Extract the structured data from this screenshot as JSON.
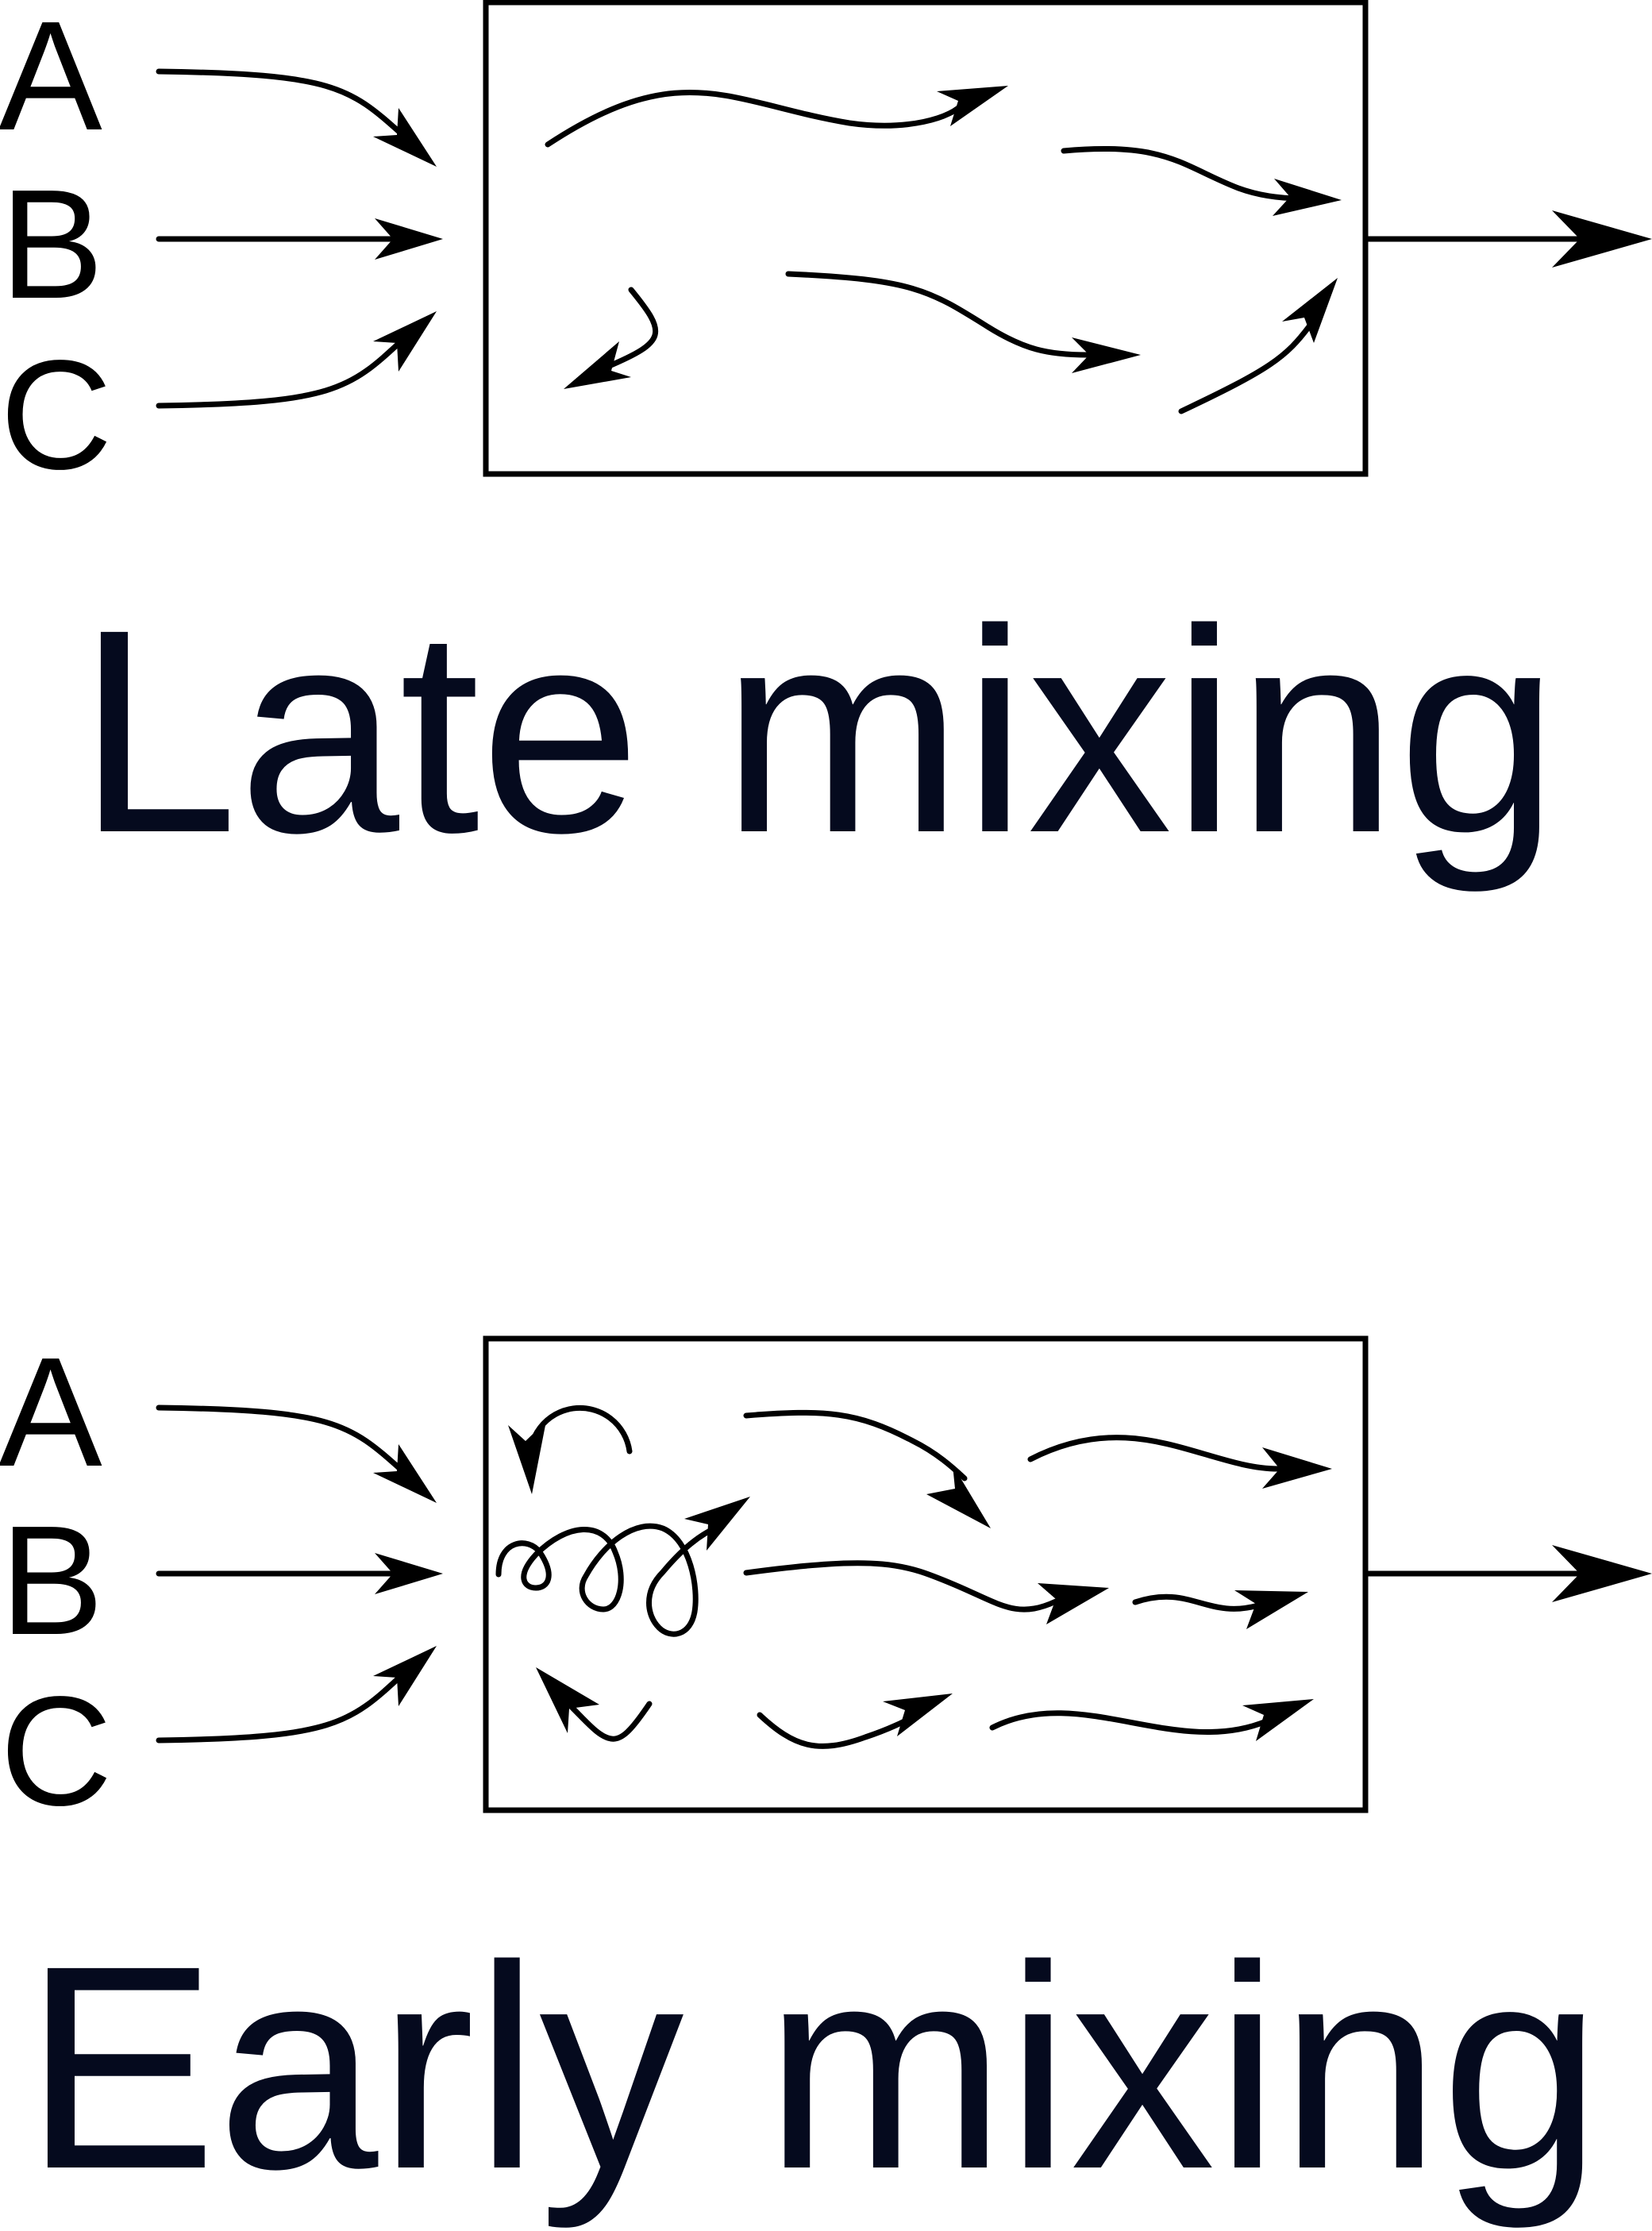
{
  "panels": [
    {
      "id": "late",
      "caption": "Late mixing",
      "inputs": [
        "A",
        "B",
        "C"
      ]
    },
    {
      "id": "early",
      "caption": "Early mixing",
      "inputs": [
        "A",
        "B",
        "C"
      ]
    }
  ],
  "colors": {
    "stroke": "#000000",
    "caption": "#050a1e",
    "background": "#ffffff"
  }
}
